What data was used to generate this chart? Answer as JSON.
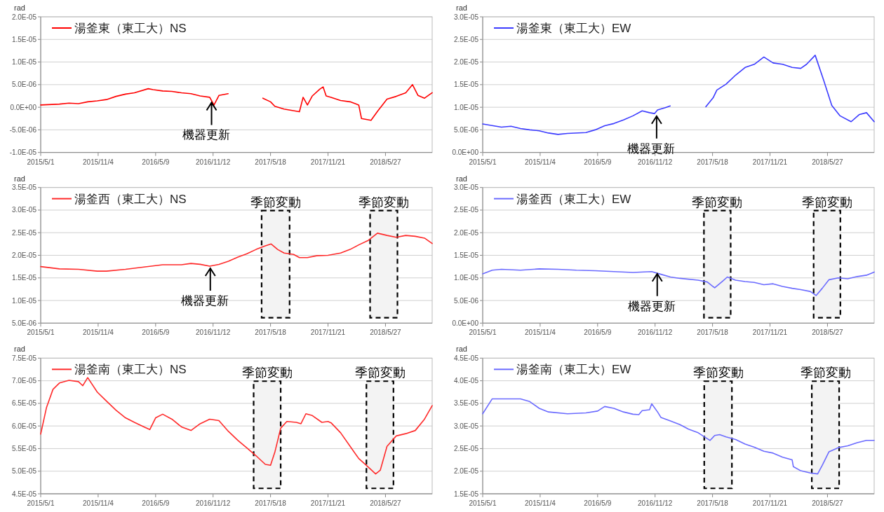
{
  "chart_data": [
    {
      "type": "line",
      "ylabel": "rad",
      "grid": "y",
      "legend": "top left",
      "xlim": [
        "2015-05-01",
        "2018-10-26"
      ],
      "xticks": [
        {
          "value": "2015-05-01",
          "label": "2015/5/1"
        },
        {
          "value": "2015-11-04",
          "label": "2015/11/4"
        },
        {
          "value": "2016-05-09",
          "label": "2016/5/9"
        },
        {
          "value": "2016-11-12",
          "label": "2016/11/12"
        },
        {
          "value": "2017-05-18",
          "label": "2017/5/18"
        },
        {
          "value": "2017-11-21",
          "label": "2017/11/21"
        },
        {
          "value": "2018-05-27",
          "label": "2018/5/27"
        }
      ],
      "ylim": [
        -1e-05,
        2e-05
      ],
      "yticks": [
        {
          "value": -1e-05,
          "label": "-1.0E-05"
        },
        {
          "value": -5e-06,
          "label": "-5.0E-06"
        },
        {
          "value": 0,
          "label": "0.0E+00"
        },
        {
          "value": 5e-06,
          "label": "5.0E-06"
        },
        {
          "value": 1e-05,
          "label": "1.0E-05"
        },
        {
          "value": 1.5e-05,
          "label": "1.5E-05"
        },
        {
          "value": 2e-05,
          "label": "2.0E-05"
        }
      ],
      "annotations": [
        {
          "text": "機器更新",
          "x": "2016-11-07",
          "y": 1.5e-06
        }
      ],
      "series": [
        {
          "name": "湯釜東（東工大）NS",
          "color": "#ff0000",
          "x": [
            "2015-05-01",
            "2015-07-01",
            "2015-08-01",
            "2015-09-01",
            "2015-10-01",
            "2015-11-01",
            "2015-12-01",
            "2016-01-01",
            "2016-02-01",
            "2016-03-01",
            "2016-04-15",
            "2016-05-01",
            "2016-06-01",
            "2016-07-01",
            "2016-08-01",
            "2016-09-01",
            "2016-10-01",
            "2016-11-01",
            "2016-11-15",
            "2016-12-01",
            "2016-12-31"
          ],
          "values": [
            5e-07,
            7e-07,
            9e-07,
            8e-07,
            1.2e-06,
            1.4e-06,
            1.7e-06,
            2.4e-06,
            2.9e-06,
            3.2e-06,
            4.1e-06,
            3.9e-06,
            3.6e-06,
            3.5e-06,
            3.2e-06,
            3e-06,
            2.5e-06,
            2.2e-06,
            5e-07,
            2.6e-06,
            3e-06
          ]
        },
        {
          "color": "#ff0000",
          "x": [
            "2017-04-23",
            "2017-05-18",
            "2017-06-01",
            "2017-07-01",
            "2017-08-20",
            "2017-09-01",
            "2017-09-15",
            "2017-10-01",
            "2017-10-25",
            "2017-11-05",
            "2017-11-15",
            "2017-12-01",
            "2018-01-01",
            "2018-02-01",
            "2018-03-01",
            "2018-03-10",
            "2018-04-10",
            "2018-05-01",
            "2018-06-01",
            "2018-07-01",
            "2018-08-01",
            "2018-08-23",
            "2018-09-10",
            "2018-10-01",
            "2018-10-26"
          ],
          "values": [
            2e-06,
            1.2e-06,
            2e-07,
            -4e-07,
            -1e-06,
            2.2e-06,
            5e-07,
            2.5e-06,
            4e-06,
            4.5e-06,
            2.5e-06,
            2.2e-06,
            1.5e-06,
            1.2e-06,
            5e-07,
            -2.5e-06,
            -2.9e-06,
            -9e-07,
            1.8e-06,
            2.4e-06,
            3.2e-06,
            5e-06,
            2.6e-06,
            2e-06,
            3.2e-06
          ]
        }
      ]
    },
    {
      "type": "line",
      "ylabel": "rad",
      "grid": "y",
      "legend": "top left",
      "xlim": [
        "2015-05-01",
        "2018-10-26"
      ],
      "xticks": [
        {
          "value": "2015-05-01",
          "label": "2015/5/1"
        },
        {
          "value": "2015-11-04",
          "label": "2015/11/4"
        },
        {
          "value": "2016-05-09",
          "label": "2016/5/9"
        },
        {
          "value": "2016-11-12",
          "label": "2016/11/12"
        },
        {
          "value": "2017-05-18",
          "label": "2017/5/18"
        },
        {
          "value": "2017-11-21",
          "label": "2017/11/21"
        },
        {
          "value": "2018-05-27",
          "label": "2018/5/27"
        }
      ],
      "ylim": [
        0,
        3e-05
      ],
      "yticks": [
        {
          "value": 0,
          "label": "0.0E+00"
        },
        {
          "value": 5e-06,
          "label": "5.0E-06"
        },
        {
          "value": 1e-05,
          "label": "1.0E-05"
        },
        {
          "value": 1.5e-05,
          "label": "1.5E-05"
        },
        {
          "value": 2e-05,
          "label": "2.0E-05"
        },
        {
          "value": 2.5e-05,
          "label": "2.5E-05"
        },
        {
          "value": 3e-05,
          "label": "3.0E-05"
        }
      ],
      "annotations": [
        {
          "text": "機器更新",
          "x": "2016-11-17",
          "y": 8.5e-06
        }
      ],
      "series": [
        {
          "name": "湯釜東（東工大）EW",
          "color": "#3b3bff",
          "x": [
            "2015-05-01",
            "2015-07-01",
            "2015-08-01",
            "2015-09-01",
            "2015-10-01",
            "2015-11-01",
            "2015-12-01",
            "2016-01-01",
            "2016-02-01",
            "2016-04-01",
            "2016-05-01",
            "2016-06-01",
            "2016-07-01",
            "2016-08-01",
            "2016-09-01",
            "2016-10-01",
            "2016-10-25",
            "2016-11-10",
            "2016-11-20",
            "2016-12-15",
            "2016-12-31"
          ],
          "values": [
            6.3e-06,
            5.6e-06,
            5.8e-06,
            5.3e-06,
            5e-06,
            4.8e-06,
            4.3e-06,
            4e-06,
            4.2e-06,
            4.4e-06,
            5e-06,
            5.9e-06,
            6.4e-06,
            7.2e-06,
            8.1e-06,
            9.2e-06,
            8.8e-06,
            8.6e-06,
            9.4e-06,
            9.9e-06,
            1.03e-05
          ]
        },
        {
          "color": "#3b3bff",
          "x": [
            "2017-04-26",
            "2017-05-20",
            "2017-06-01",
            "2017-07-01",
            "2017-08-01",
            "2017-09-01",
            "2017-10-01",
            "2017-11-01",
            "2017-12-01",
            "2018-01-01",
            "2018-02-01",
            "2018-03-01",
            "2018-03-20",
            "2018-04-17",
            "2018-05-14",
            "2018-06-10",
            "2018-07-07",
            "2018-08-12",
            "2018-09-08",
            "2018-10-01",
            "2018-10-26"
          ],
          "values": [
            1.01e-05,
            1.21e-05,
            1.38e-05,
            1.51e-05,
            1.71e-05,
            1.88e-05,
            1.95e-05,
            2.11e-05,
            1.98e-05,
            1.95e-05,
            1.88e-05,
            1.86e-05,
            1.95e-05,
            2.15e-05,
            1.61e-05,
            1.04e-05,
            8.1e-06,
            6.8e-06,
            8.4e-06,
            8.8e-06,
            6.8e-06
          ]
        }
      ]
    },
    {
      "type": "line",
      "ylabel": "rad",
      "grid": "y",
      "legend": "top left",
      "xlim": [
        "2015-05-01",
        "2018-10-26"
      ],
      "xticks": [
        {
          "value": "2015-05-01",
          "label": "2015/5/1"
        },
        {
          "value": "2015-11-04",
          "label": "2015/11/4"
        },
        {
          "value": "2016-05-09",
          "label": "2016/5/9"
        },
        {
          "value": "2016-11-12",
          "label": "2016/11/12"
        },
        {
          "value": "2017-05-18",
          "label": "2017/5/18"
        },
        {
          "value": "2017-11-21",
          "label": "2017/11/21"
        },
        {
          "value": "2018-05-27",
          "label": "2018/5/27"
        }
      ],
      "ylim": [
        5e-06,
        3.5e-05
      ],
      "yticks": [
        {
          "value": 5e-06,
          "label": "5.0E-06"
        },
        {
          "value": 1e-05,
          "label": "1.0E-05"
        },
        {
          "value": 1.5e-05,
          "label": "1.5E-05"
        },
        {
          "value": 2e-05,
          "label": "2.0E-05"
        },
        {
          "value": 2.5e-05,
          "label": "2.5E-05"
        },
        {
          "value": 3e-05,
          "label": "3.0E-05"
        },
        {
          "value": 3.5e-05,
          "label": "3.5E-05"
        }
      ],
      "annotations": [
        {
          "text": "機器更新",
          "x": "2016-11-03",
          "y": 1.76e-05
        }
      ],
      "bands": [
        {
          "axis": "x",
          "from": "2017-04-19",
          "to": "2017-07-19",
          "label": "季節変動",
          "color": "#000000"
        },
        {
          "axis": "x",
          "from": "2018-04-07",
          "to": "2018-07-05",
          "label": "季節変動",
          "color": "#000000"
        }
      ],
      "series": [
        {
          "name": "湯釜西（東工大）NS",
          "color": "#ff2a2a",
          "x": [
            "2015-05-01",
            "2015-07-01",
            "2015-09-01",
            "2015-11-01",
            "2015-12-01",
            "2016-02-01",
            "2016-04-01",
            "2016-06-01",
            "2016-08-01",
            "2016-09-01",
            "2016-10-01",
            "2016-11-01",
            "2016-12-01",
            "2017-01-01",
            "2017-02-01",
            "2017-03-01",
            "2017-04-01",
            "2017-05-01",
            "2017-05-20",
            "2017-06-10",
            "2017-07-01",
            "2017-08-01",
            "2017-08-20",
            "2017-09-15",
            "2017-10-15",
            "2017-11-21",
            "2018-01-01",
            "2018-02-01",
            "2018-03-01",
            "2018-04-01",
            "2018-05-01",
            "2018-06-01",
            "2018-07-01",
            "2018-08-01",
            "2018-09-01",
            "2018-10-01",
            "2018-10-26"
          ],
          "values": [
            1.75e-05,
            1.7e-05,
            1.69e-05,
            1.65e-05,
            1.65e-05,
            1.69e-05,
            1.74e-05,
            1.79e-05,
            1.79e-05,
            1.82e-05,
            1.8e-05,
            1.76e-05,
            1.8e-05,
            1.87e-05,
            1.96e-05,
            2.03e-05,
            2.13e-05,
            2.21e-05,
            2.25e-05,
            2.13e-05,
            2.05e-05,
            2.02e-05,
            1.95e-05,
            1.95e-05,
            1.99e-05,
            2e-05,
            2.05e-05,
            2.13e-05,
            2.23e-05,
            2.33e-05,
            2.49e-05,
            2.44e-05,
            2.4e-05,
            2.44e-05,
            2.42e-05,
            2.38e-05,
            2.26e-05
          ]
        }
      ]
    },
    {
      "type": "line",
      "ylabel": "rad",
      "grid": "y",
      "legend": "top left",
      "xlim": [
        "2015-05-01",
        "2018-10-26"
      ],
      "xticks": [
        {
          "value": "2015-05-01",
          "label": "2015/5/1"
        },
        {
          "value": "2015-11-04",
          "label": "2015/11/4"
        },
        {
          "value": "2016-05-09",
          "label": "2016/5/9"
        },
        {
          "value": "2016-11-12",
          "label": "2016/11/12"
        },
        {
          "value": "2017-05-18",
          "label": "2017/5/18"
        },
        {
          "value": "2017-11-21",
          "label": "2017/11/21"
        },
        {
          "value": "2018-05-27",
          "label": "2018/5/27"
        }
      ],
      "ylim": [
        0,
        3e-05
      ],
      "yticks": [
        {
          "value": 0,
          "label": "0.0E+00"
        },
        {
          "value": 5e-06,
          "label": "5.0E-06"
        },
        {
          "value": 1e-05,
          "label": "1.0E-05"
        },
        {
          "value": 1.5e-05,
          "label": "1.5E-05"
        },
        {
          "value": 2e-05,
          "label": "2.0E-05"
        },
        {
          "value": 2.5e-05,
          "label": "2.5E-05"
        },
        {
          "value": 3e-05,
          "label": "3.0E-05"
        }
      ],
      "annotations": [
        {
          "text": "機器更新",
          "x": "2016-11-19",
          "y": 1.14e-05
        }
      ],
      "bands": [
        {
          "axis": "x",
          "from": "2017-04-20",
          "to": "2017-07-16",
          "label": "季節変動",
          "color": "#000000"
        },
        {
          "axis": "x",
          "from": "2018-04-12",
          "to": "2018-07-08",
          "label": "季節変動",
          "color": "#000000"
        }
      ],
      "series": [
        {
          "name": "湯釜西（東工大）EW",
          "color": "#6b6bff",
          "x": [
            "2015-05-01",
            "2015-06-01",
            "2015-07-01",
            "2015-09-01",
            "2015-11-01",
            "2016-01-01",
            "2016-03-01",
            "2016-05-01",
            "2016-07-01",
            "2016-09-01",
            "2016-11-01",
            "2016-12-01",
            "2017-01-01",
            "2017-02-01",
            "2017-04-01",
            "2017-05-01",
            "2017-05-25",
            "2017-06-20",
            "2017-07-05",
            "2017-08-01",
            "2017-09-01",
            "2017-10-01",
            "2017-11-01",
            "2017-12-01",
            "2018-01-01",
            "2018-02-01",
            "2018-03-01",
            "2018-04-01",
            "2018-04-20",
            "2018-05-10",
            "2018-06-01",
            "2018-07-01",
            "2018-08-01",
            "2018-09-01",
            "2018-10-01",
            "2018-10-26"
          ],
          "values": [
            1.09e-05,
            1.17e-05,
            1.19e-05,
            1.17e-05,
            1.2e-05,
            1.19e-05,
            1.17e-05,
            1.16e-05,
            1.14e-05,
            1.12e-05,
            1.14e-05,
            1.08e-05,
            1.02e-05,
            9.9e-06,
            9.5e-06,
            9.1e-06,
            7.8e-06,
            9.3e-06,
            1.02e-05,
            9.5e-06,
            9.2e-06,
            9e-06,
            8.5e-06,
            8.7e-06,
            8.1e-06,
            7.7e-06,
            7.4e-06,
            7e-06,
            6.1e-06,
            7.7e-06,
            9.6e-06,
            1e-05,
            9.8e-06,
            1.03e-05,
            1.06e-05,
            1.13e-05
          ]
        }
      ]
    },
    {
      "type": "line",
      "ylabel": "rad",
      "grid": "y",
      "legend": "top left",
      "xlim": [
        "2015-05-01",
        "2018-10-26"
      ],
      "xticks": [
        {
          "value": "2015-05-01",
          "label": "2015/5/1"
        },
        {
          "value": "2015-11-04",
          "label": "2015/11/4"
        },
        {
          "value": "2016-05-09",
          "label": "2016/5/9"
        },
        {
          "value": "2016-11-12",
          "label": "2016/11/12"
        },
        {
          "value": "2017-05-18",
          "label": "2017/5/18"
        },
        {
          "value": "2017-11-21",
          "label": "2017/11/21"
        },
        {
          "value": "2018-05-27",
          "label": "2018/5/27"
        }
      ],
      "ylim": [
        4.5e-05,
        7.5e-05
      ],
      "yticks": [
        {
          "value": 4.5e-05,
          "label": "4.5E-05"
        },
        {
          "value": 5e-05,
          "label": "5.0E-05"
        },
        {
          "value": 5.5e-05,
          "label": "5.5E-05"
        },
        {
          "value": 6e-05,
          "label": "6.0E-05"
        },
        {
          "value": 6.5e-05,
          "label": "6.5E-05"
        },
        {
          "value": 7e-05,
          "label": "7.0E-05"
        },
        {
          "value": 7.5e-05,
          "label": "7.5E-05"
        }
      ],
      "bands": [
        {
          "axis": "x",
          "from": "2017-03-24",
          "to": "2017-06-20",
          "label": "季節変動",
          "color": "#000000"
        },
        {
          "axis": "x",
          "from": "2018-03-26",
          "to": "2018-06-22",
          "label": "季節変動",
          "color": "#000000"
        }
      ],
      "series": [
        {
          "name": "湯釜南（東工大）NS",
          "color": "#ff2a2a",
          "x": [
            "2015-05-01",
            "2015-05-20",
            "2015-06-10",
            "2015-07-01",
            "2015-08-01",
            "2015-09-01",
            "2015-09-15",
            "2015-10-01",
            "2015-11-01",
            "2015-12-01",
            "2016-01-01",
            "2016-02-01",
            "2016-03-01",
            "2016-04-01",
            "2016-04-20",
            "2016-05-09",
            "2016-06-01",
            "2016-07-01",
            "2016-08-01",
            "2016-09-01",
            "2016-10-01",
            "2016-11-01",
            "2016-12-01",
            "2017-01-01",
            "2017-02-01",
            "2017-03-01",
            "2017-04-01",
            "2017-05-01",
            "2017-05-18",
            "2017-06-01",
            "2017-06-20",
            "2017-07-10",
            "2017-08-10",
            "2017-08-25",
            "2017-09-10",
            "2017-10-01",
            "2017-11-01",
            "2017-11-21",
            "2017-12-01",
            "2018-01-01",
            "2018-02-01",
            "2018-03-01",
            "2018-04-01",
            "2018-04-25",
            "2018-05-10",
            "2018-06-01",
            "2018-07-01",
            "2018-08-01",
            "2018-09-01",
            "2018-10-01",
            "2018-10-26"
          ],
          "values": [
            5.82e-05,
            6.41e-05,
            6.81e-05,
            6.95e-05,
            7.01e-05,
            6.98e-05,
            6.89e-05,
            7.07e-05,
            6.75e-05,
            6.55e-05,
            6.35e-05,
            6.18e-05,
            6.08e-05,
            5.98e-05,
            5.92e-05,
            6.18e-05,
            6.26e-05,
            6.15e-05,
            5.98e-05,
            5.9e-05,
            6.05e-05,
            6.15e-05,
            6.12e-05,
            5.88e-05,
            5.68e-05,
            5.52e-05,
            5.34e-05,
            5.15e-05,
            5.13e-05,
            5.42e-05,
            5.95e-05,
            6.1e-05,
            6.08e-05,
            6.05e-05,
            6.27e-05,
            6.23e-05,
            6.08e-05,
            6.1e-05,
            6.07e-05,
            5.85e-05,
            5.55e-05,
            5.28e-05,
            5.09e-05,
            4.94e-05,
            5.02e-05,
            5.55e-05,
            5.78e-05,
            5.83e-05,
            5.9e-05,
            6.15e-05,
            6.45e-05
          ]
        }
      ]
    },
    {
      "type": "line",
      "ylabel": "rad",
      "grid": "y",
      "legend": "top left",
      "xlim": [
        "2015-05-01",
        "2018-10-26"
      ],
      "xticks": [
        {
          "value": "2015-05-01",
          "label": "2015/5/1"
        },
        {
          "value": "2015-11-04",
          "label": "2015/11/4"
        },
        {
          "value": "2016-05-09",
          "label": "2016/5/9"
        },
        {
          "value": "2016-11-12",
          "label": "2016/11/12"
        },
        {
          "value": "2017-05-18",
          "label": "2017/5/18"
        },
        {
          "value": "2017-11-21",
          "label": "2017/11/21"
        },
        {
          "value": "2018-05-27",
          "label": "2018/5/27"
        }
      ],
      "ylim": [
        1.5e-05,
        4.5e-05
      ],
      "yticks": [
        {
          "value": 1.5e-05,
          "label": "1.5E-05"
        },
        {
          "value": 2e-05,
          "label": "2.0E-05"
        },
        {
          "value": 2.5e-05,
          "label": "2.5E-05"
        },
        {
          "value": 3e-05,
          "label": "3.0E-05"
        },
        {
          "value": 3.5e-05,
          "label": "3.5E-05"
        },
        {
          "value": 4e-05,
          "label": "4.0E-05"
        },
        {
          "value": 4.5e-05,
          "label": "4.5E-05"
        }
      ],
      "bands": [
        {
          "axis": "x",
          "from": "2017-04-21",
          "to": "2017-07-20",
          "label": "季節変動",
          "color": "#000000"
        },
        {
          "axis": "x",
          "from": "2018-04-06",
          "to": "2018-07-04",
          "label": "季節変動",
          "color": "#000000"
        }
      ],
      "series": [
        {
          "name": "湯釜南（東工大）EW",
          "color": "#6b6bff",
          "x": [
            "2015-05-01",
            "2015-06-01",
            "2015-07-01",
            "2015-09-01",
            "2015-10-01",
            "2015-11-01",
            "2015-12-01",
            "2016-02-01",
            "2016-04-01",
            "2016-05-09",
            "2016-06-01",
            "2016-07-01",
            "2016-08-01",
            "2016-09-01",
            "2016-09-20",
            "2016-10-01",
            "2016-10-25",
            "2016-11-01",
            "2016-11-20",
            "2016-12-01",
            "2017-01-01",
            "2017-02-01",
            "2017-03-01",
            "2017-04-01",
            "2017-05-10",
            "2017-05-25",
            "2017-06-10",
            "2017-07-01",
            "2017-08-01",
            "2017-09-01",
            "2017-10-01",
            "2017-11-01",
            "2017-12-01",
            "2018-01-01",
            "2018-02-01",
            "2018-02-05",
            "2018-03-01",
            "2018-04-01",
            "2018-04-25",
            "2018-05-10",
            "2018-06-01",
            "2018-07-01",
            "2018-08-01",
            "2018-09-01",
            "2018-10-01",
            "2018-10-26"
          ],
          "values": [
            3.27e-05,
            3.6e-05,
            3.6e-05,
            3.6e-05,
            3.54e-05,
            3.39e-05,
            3.31e-05,
            3.27e-05,
            3.29e-05,
            3.33e-05,
            3.43e-05,
            3.39e-05,
            3.31e-05,
            3.26e-05,
            3.25e-05,
            3.34e-05,
            3.36e-05,
            3.49e-05,
            3.31e-05,
            3.19e-05,
            3.11e-05,
            3.03e-05,
            2.93e-05,
            2.85e-05,
            2.68e-05,
            2.79e-05,
            2.81e-05,
            2.76e-05,
            2.7e-05,
            2.6e-05,
            2.53e-05,
            2.44e-05,
            2.4e-05,
            2.31e-05,
            2.25e-05,
            2.1e-05,
            2.01e-05,
            1.96e-05,
            1.94e-05,
            2.13e-05,
            2.43e-05,
            2.52e-05,
            2.56e-05,
            2.63e-05,
            2.68e-05,
            2.68e-05
          ]
        }
      ]
    }
  ]
}
